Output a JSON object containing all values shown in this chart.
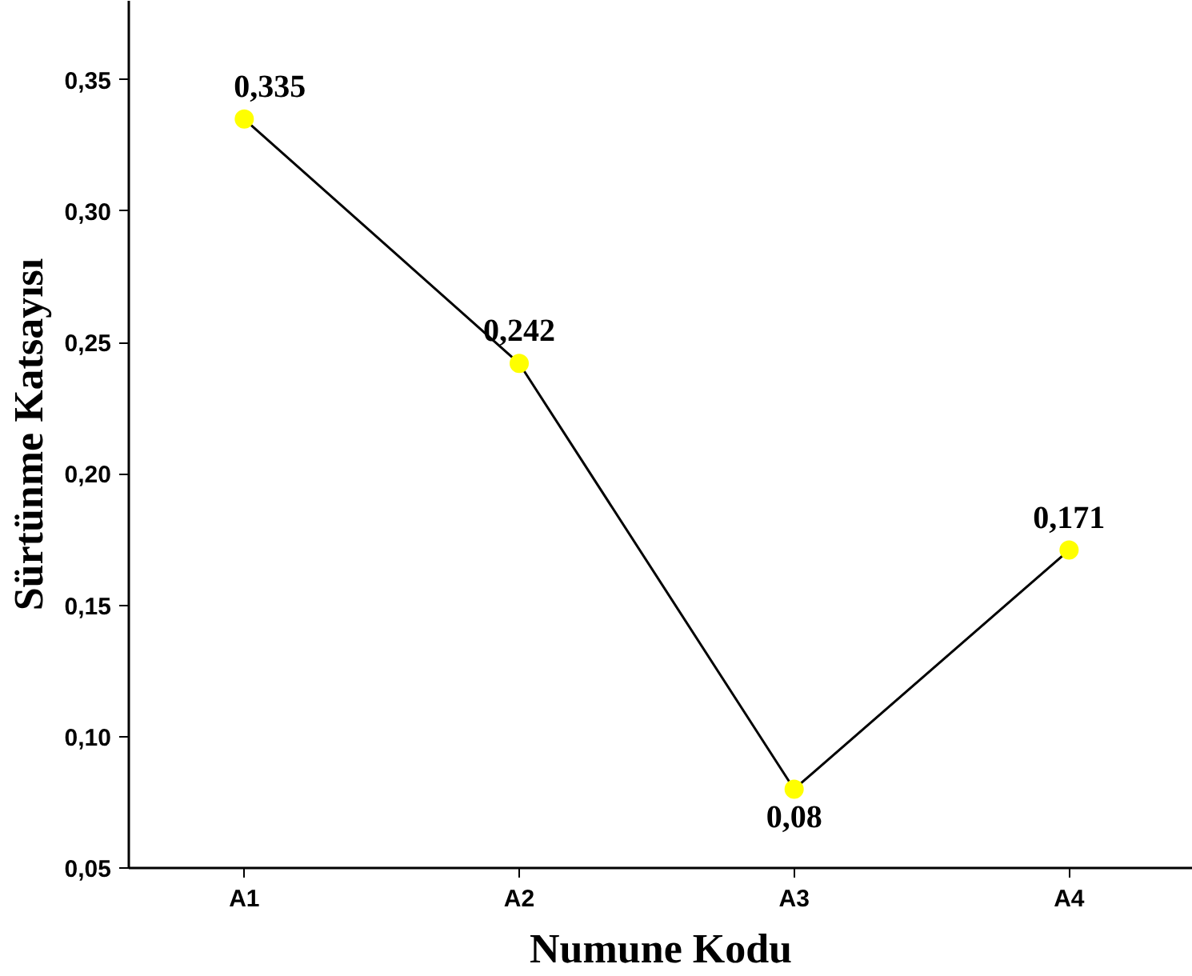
{
  "chart_data": {
    "type": "line",
    "xlabel": "Numune Kodu",
    "ylabel": "Sürtünme Katsayısı",
    "categories": [
      "A1",
      "A2",
      "A3",
      "A4"
    ],
    "series": [
      {
        "color": "#000000",
        "colors": [
          "#ffff00",
          "#ffff00",
          "#ffff00",
          "#ffff00"
        ],
        "values": [
          0.335,
          0.242,
          0.08,
          0.171
        ],
        "value_labels": [
          "0,335",
          "0,242",
          "0,08",
          "0,171"
        ]
      }
    ],
    "marker": "circle",
    "line_style": "solid",
    "grid": false,
    "ylim": [
      0.05,
      0.38
    ],
    "yticks": [
      {
        "value": 0.05,
        "label": "0,05"
      },
      {
        "value": 0.1,
        "label": "0,10"
      },
      {
        "value": 0.15,
        "label": "0,15"
      },
      {
        "value": 0.2,
        "label": "0,20"
      },
      {
        "value": 0.25,
        "label": "0,25"
      },
      {
        "value": 0.3,
        "label": "0,30"
      },
      {
        "value": 0.35,
        "label": "0,35"
      }
    ]
  }
}
